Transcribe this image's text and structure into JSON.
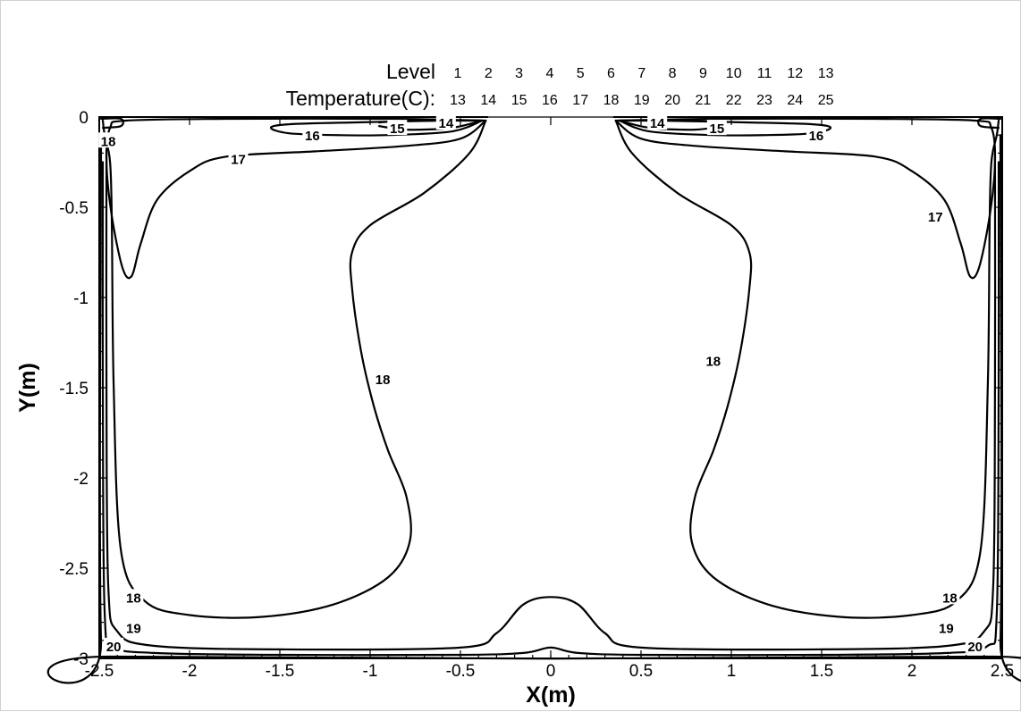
{
  "chart_data": {
    "type": "contour",
    "title": "",
    "xlabel": "X(m)",
    "ylabel": "Y(m)",
    "xlim": [
      -2.5,
      2.5
    ],
    "ylim": [
      -3,
      0
    ],
    "xticks": [
      "-2.5",
      "-2",
      "-1.5",
      "-1",
      "-0.5",
      "0",
      "0.5",
      "1",
      "1.5",
      "2",
      "2.5"
    ],
    "yticks": [
      "0",
      "-0.5",
      "-1",
      "-1.5",
      "-2",
      "-2.5",
      "-3"
    ],
    "legend": {
      "level_label": "Level",
      "value_label": "Temperature(C):",
      "levels": [
        "1",
        "2",
        "3",
        "4",
        "5",
        "6",
        "7",
        "8",
        "9",
        "10",
        "11",
        "12",
        "13"
      ],
      "values": [
        "13",
        "14",
        "15",
        "16",
        "17",
        "18",
        "19",
        "20",
        "21",
        "22",
        "23",
        "24",
        "25"
      ]
    },
    "contours": [
      {
        "level": 14,
        "points": [
          [
            -0.95,
            -0.03
          ],
          [
            -0.8,
            -0.02
          ],
          [
            -0.5,
            -0.02
          ],
          [
            -0.38,
            -0.02
          ]
        ]
      },
      {
        "level": 14,
        "points": [
          [
            0.38,
            -0.02
          ],
          [
            0.5,
            -0.02
          ],
          [
            0.8,
            -0.02
          ],
          [
            0.95,
            -0.03
          ]
        ]
      },
      {
        "level": 15,
        "points": [
          [
            -0.95,
            -0.05
          ],
          [
            -0.8,
            -0.07
          ],
          [
            -0.55,
            -0.06
          ],
          [
            -0.38,
            -0.02
          ]
        ]
      },
      {
        "level": 15,
        "points": [
          [
            0.38,
            -0.02
          ],
          [
            0.55,
            -0.06
          ],
          [
            0.8,
            -0.07
          ],
          [
            0.95,
            -0.05
          ]
        ]
      },
      {
        "level": 16,
        "points": [
          [
            -0.38,
            -0.02
          ],
          [
            -0.55,
            -0.08
          ],
          [
            -0.9,
            -0.1
          ],
          [
            -1.2,
            -0.1
          ],
          [
            -1.45,
            -0.09
          ],
          [
            -1.55,
            -0.06
          ],
          [
            -1.45,
            -0.04
          ],
          [
            -1.1,
            -0.03
          ],
          [
            -0.6,
            -0.02
          ],
          [
            -0.38,
            -0.02
          ]
        ]
      },
      {
        "level": 16,
        "points": [
          [
            0.38,
            -0.02
          ],
          [
            0.6,
            -0.02
          ],
          [
            1.1,
            -0.03
          ],
          [
            1.45,
            -0.04
          ],
          [
            1.55,
            -0.06
          ],
          [
            1.45,
            -0.09
          ],
          [
            1.2,
            -0.1
          ],
          [
            0.9,
            -0.1
          ],
          [
            0.55,
            -0.08
          ],
          [
            0.38,
            -0.02
          ]
        ]
      },
      {
        "level": 17,
        "points": [
          [
            -0.36,
            -0.02
          ],
          [
            -0.5,
            -0.12
          ],
          [
            -0.8,
            -0.16
          ],
          [
            -1.3,
            -0.19
          ],
          [
            -1.8,
            -0.22
          ],
          [
            -2.0,
            -0.3
          ],
          [
            -2.18,
            -0.46
          ],
          [
            -2.27,
            -0.7
          ],
          [
            -2.32,
            -0.88
          ],
          [
            -2.37,
            -0.84
          ],
          [
            -2.43,
            -0.55
          ],
          [
            -2.46,
            -0.25
          ],
          [
            -2.44,
            -0.06
          ],
          [
            -2.35,
            -0.02
          ],
          [
            -1.8,
            -0.01
          ],
          [
            -0.9,
            -0.01
          ],
          [
            -0.36,
            -0.02
          ]
        ]
      },
      {
        "level": 17,
        "points": [
          [
            0.36,
            -0.02
          ],
          [
            0.9,
            -0.01
          ],
          [
            1.8,
            -0.01
          ],
          [
            2.35,
            -0.02
          ],
          [
            2.44,
            -0.06
          ],
          [
            2.46,
            -0.25
          ],
          [
            2.43,
            -0.55
          ],
          [
            2.37,
            -0.84
          ],
          [
            2.32,
            -0.88
          ],
          [
            2.27,
            -0.7
          ],
          [
            2.18,
            -0.46
          ],
          [
            2.0,
            -0.3
          ],
          [
            1.8,
            -0.22
          ],
          [
            1.3,
            -0.19
          ],
          [
            0.8,
            -0.16
          ],
          [
            0.5,
            -0.12
          ],
          [
            0.36,
            -0.02
          ]
        ]
      },
      {
        "level": 18,
        "points": [
          [
            -0.36,
            -0.02
          ],
          [
            -0.45,
            -0.2
          ],
          [
            -0.7,
            -0.42
          ],
          [
            -1.0,
            -0.6
          ],
          [
            -1.1,
            -0.75
          ],
          [
            -1.1,
            -0.95
          ],
          [
            -1.05,
            -1.3
          ],
          [
            -0.98,
            -1.6
          ],
          [
            -0.9,
            -1.85
          ],
          [
            -0.8,
            -2.1
          ],
          [
            -0.78,
            -2.35
          ],
          [
            -0.9,
            -2.55
          ],
          [
            -1.2,
            -2.7
          ],
          [
            -1.6,
            -2.77
          ],
          [
            -2.0,
            -2.76
          ],
          [
            -2.25,
            -2.68
          ],
          [
            -2.38,
            -2.4
          ],
          [
            -2.42,
            -1.5
          ],
          [
            -2.43,
            -0.6
          ],
          [
            -2.44,
            -0.25
          ],
          [
            -2.47,
            -0.1
          ],
          [
            -2.48,
            -0.02
          ]
        ]
      },
      {
        "level": 18,
        "points": [
          [
            0.36,
            -0.02
          ],
          [
            0.45,
            -0.2
          ],
          [
            0.7,
            -0.42
          ],
          [
            1.0,
            -0.6
          ],
          [
            1.1,
            -0.75
          ],
          [
            1.1,
            -0.95
          ],
          [
            1.05,
            -1.3
          ],
          [
            0.98,
            -1.6
          ],
          [
            0.9,
            -1.85
          ],
          [
            0.8,
            -2.1
          ],
          [
            0.78,
            -2.35
          ],
          [
            0.9,
            -2.55
          ],
          [
            1.2,
            -2.7
          ],
          [
            1.6,
            -2.77
          ],
          [
            2.0,
            -2.76
          ],
          [
            2.25,
            -2.68
          ],
          [
            2.38,
            -2.4
          ],
          [
            2.42,
            -1.5
          ],
          [
            2.43,
            -0.6
          ],
          [
            2.44,
            -0.25
          ],
          [
            2.47,
            -0.1
          ],
          [
            2.48,
            -0.02
          ]
        ]
      },
      {
        "level": 19,
        "points": [
          [
            -2.46,
            -0.2
          ],
          [
            -2.46,
            -1.5
          ],
          [
            -2.45,
            -2.6
          ],
          [
            -2.4,
            -2.85
          ],
          [
            -2.2,
            -2.93
          ],
          [
            -1.5,
            -2.95
          ],
          [
            -0.5,
            -2.94
          ],
          [
            -0.3,
            -2.86
          ],
          [
            -0.15,
            -2.7
          ],
          [
            0.0,
            -2.66
          ],
          [
            0.15,
            -2.7
          ],
          [
            0.3,
            -2.86
          ],
          [
            0.5,
            -2.94
          ],
          [
            1.5,
            -2.95
          ],
          [
            2.2,
            -2.93
          ],
          [
            2.4,
            -2.85
          ],
          [
            2.45,
            -2.6
          ],
          [
            2.46,
            -1.5
          ],
          [
            2.46,
            -0.2
          ]
        ]
      },
      {
        "level": 20,
        "points": [
          [
            -2.48,
            -0.25
          ],
          [
            -2.48,
            -1.5
          ],
          [
            -2.47,
            -2.75
          ],
          [
            -2.42,
            -2.93
          ],
          [
            -2.2,
            -2.97
          ],
          [
            -1.5,
            -2.98
          ],
          [
            -0.5,
            -2.98
          ],
          [
            -0.15,
            -2.97
          ],
          [
            0.0,
            -2.94
          ],
          [
            0.15,
            -2.97
          ],
          [
            0.5,
            -2.98
          ],
          [
            1.5,
            -2.98
          ],
          [
            2.2,
            -2.97
          ],
          [
            2.42,
            -2.93
          ],
          [
            2.47,
            -2.75
          ],
          [
            2.48,
            -1.5
          ],
          [
            2.48,
            -0.25
          ]
        ]
      },
      {
        "level": 21,
        "points": [
          [
            -2.49,
            -0.1
          ],
          [
            -2.49,
            -2.9
          ],
          [
            -2.4,
            -2.99
          ],
          [
            2.4,
            -2.99
          ],
          [
            2.49,
            -2.9
          ],
          [
            2.49,
            -0.1
          ]
        ]
      },
      {
        "level": 13,
        "points": [
          [
            -2.49,
            -0.01
          ],
          [
            -2.38,
            -0.01
          ],
          [
            -2.38,
            -0.05
          ],
          [
            -2.48,
            -0.06
          ]
        ]
      },
      {
        "level": 13,
        "points": [
          [
            2.49,
            -0.01
          ],
          [
            2.38,
            -0.01
          ],
          [
            2.38,
            -0.05
          ],
          [
            2.48,
            -0.06
          ]
        ]
      }
    ],
    "contour_labels": [
      {
        "text": "14",
        "x": -0.58,
        "y": -0.03
      },
      {
        "text": "15",
        "x": -0.85,
        "y": -0.06
      },
      {
        "text": "16",
        "x": -1.32,
        "y": -0.1
      },
      {
        "text": "17",
        "x": -1.73,
        "y": -0.23
      },
      {
        "text": "18",
        "x": -2.45,
        "y": -0.13
      },
      {
        "text": "18",
        "x": -0.93,
        "y": -1.45
      },
      {
        "text": "18",
        "x": -2.31,
        "y": -2.66
      },
      {
        "text": "19",
        "x": -2.31,
        "y": -2.83
      },
      {
        "text": "20",
        "x": -2.42,
        "y": -2.93
      },
      {
        "text": "14",
        "x": 0.59,
        "y": -0.03
      },
      {
        "text": "15",
        "x": 0.92,
        "y": -0.06
      },
      {
        "text": "16",
        "x": 1.47,
        "y": -0.1
      },
      {
        "text": "17",
        "x": 2.13,
        "y": -0.55
      },
      {
        "text": "18",
        "x": 0.9,
        "y": -1.35
      },
      {
        "text": "18",
        "x": 2.21,
        "y": -2.66
      },
      {
        "text": "19",
        "x": 2.19,
        "y": -2.83
      },
      {
        "text": "20",
        "x": 2.35,
        "y": -2.93
      }
    ]
  }
}
